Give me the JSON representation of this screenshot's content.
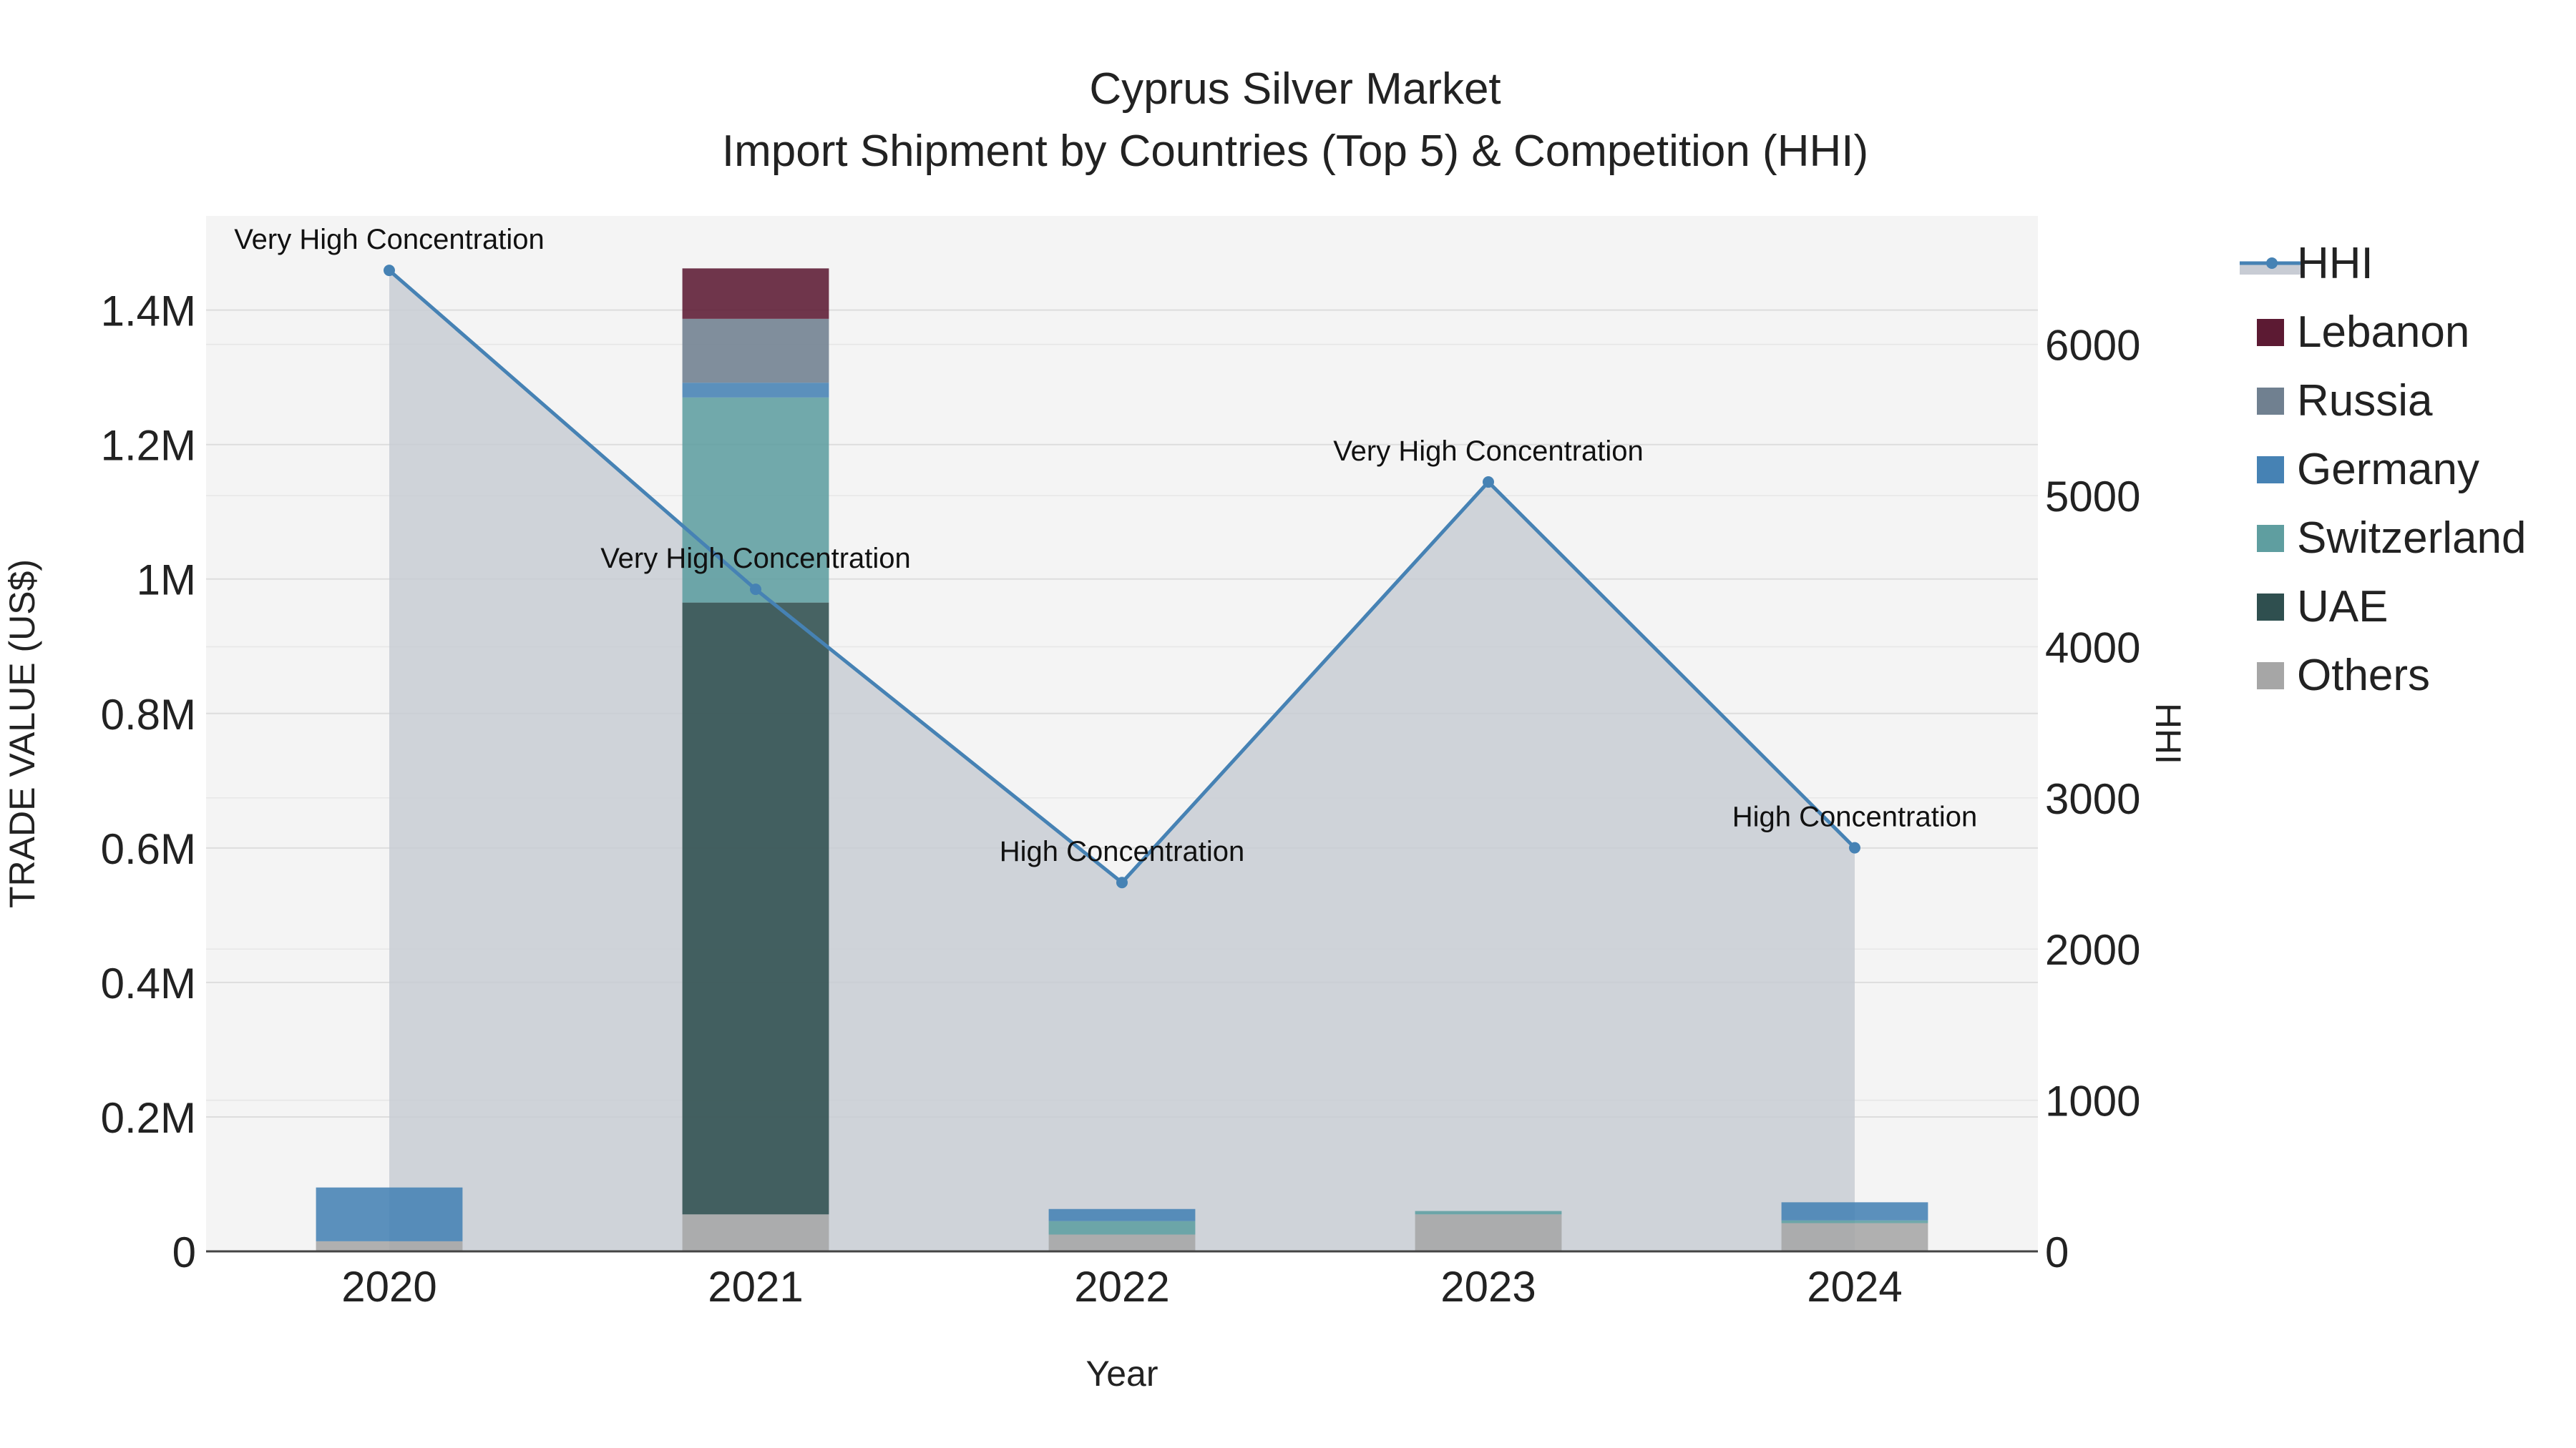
{
  "chart_data": {
    "type": "bar",
    "title": "Cyprus Silver Market",
    "subtitle": "Import Shipment by Countries (Top 5) & Competition (HHI)",
    "xlabel": "Year",
    "ylabel": "TRADE VALUE (US$)",
    "y2label": "HHI",
    "categories": [
      "2020",
      "2021",
      "2022",
      "2023",
      "2024"
    ],
    "ylim": [
      0,
      1540000
    ],
    "y2lim": [
      0,
      6850
    ],
    "yticks": [
      {
        "value": 0,
        "label": "0"
      },
      {
        "value": 200000,
        "label": "0.2M"
      },
      {
        "value": 400000,
        "label": "0.4M"
      },
      {
        "value": 600000,
        "label": "0.6M"
      },
      {
        "value": 800000,
        "label": "0.8M"
      },
      {
        "value": 1000000,
        "label": "1M"
      },
      {
        "value": 1200000,
        "label": "1.2M"
      },
      {
        "value": 1400000,
        "label": "1.4M"
      }
    ],
    "y2ticks": [
      {
        "value": 0,
        "label": "0"
      },
      {
        "value": 1000,
        "label": "1000"
      },
      {
        "value": 2000,
        "label": "2000"
      },
      {
        "value": 3000,
        "label": "3000"
      },
      {
        "value": 4000,
        "label": "4000"
      },
      {
        "value": 5000,
        "label": "5000"
      },
      {
        "value": 6000,
        "label": "6000"
      }
    ],
    "grid": true,
    "legend_position": "right",
    "series": [
      {
        "name": "Others",
        "color": "#a6a6a6",
        "values": [
          15000,
          55000,
          25000,
          55000,
          42000
        ]
      },
      {
        "name": "UAE",
        "color": "#2f4f4f",
        "values": [
          0,
          910000,
          0,
          0,
          0
        ]
      },
      {
        "name": "Switzerland",
        "color": "#5f9ea0",
        "values": [
          0,
          305000,
          20000,
          5000,
          4000
        ]
      },
      {
        "name": "Germany",
        "color": "#4682b4",
        "values": [
          80000,
          22000,
          18000,
          0,
          27000
        ]
      },
      {
        "name": "Russia",
        "color": "#708090",
        "values": [
          0,
          95000,
          0,
          0,
          0
        ]
      },
      {
        "name": "Lebanon",
        "color": "#5c1a33",
        "values": [
          0,
          75000,
          0,
          0,
          0
        ]
      }
    ],
    "hhi": {
      "name": "HHI",
      "color": "#4682b4",
      "fill": "#c8ccd4",
      "values": [
        6490,
        4380,
        2440,
        5090,
        2670
      ],
      "annotations": [
        "Very High Concentration",
        "Very High Concentration",
        "High Concentration",
        "Very High Concentration",
        "High Concentration"
      ]
    },
    "legend": [
      "HHI",
      "Lebanon",
      "Russia",
      "Germany",
      "Switzerland",
      "UAE",
      "Others"
    ]
  }
}
